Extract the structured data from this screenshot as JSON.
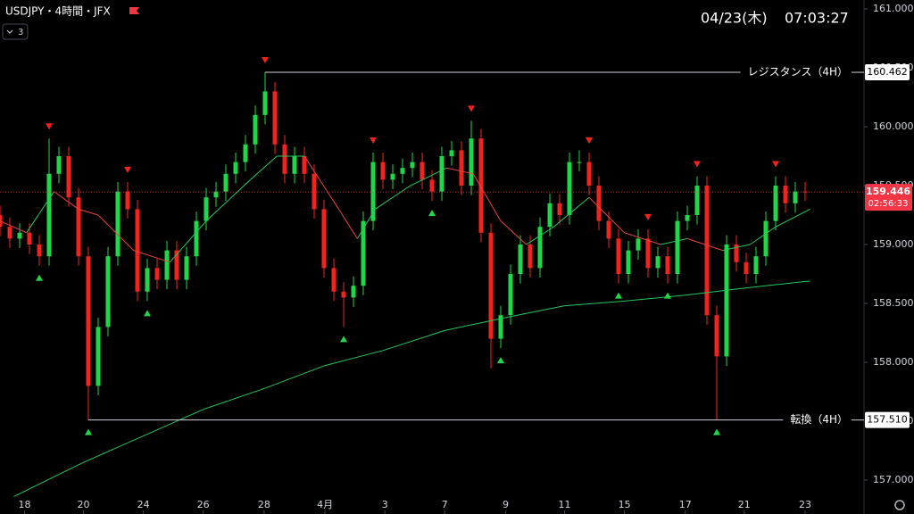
{
  "header": {
    "symbol": "USDJPY・4時間・JFX",
    "indicator_count": "3",
    "date": "04/23(木)",
    "time": "07:03:27"
  },
  "chart_data": {
    "type": "candlestick",
    "x": [
      0,
      1,
      2,
      3,
      4,
      5,
      6,
      7,
      8,
      9,
      10,
      11,
      12,
      13,
      14,
      15,
      16,
      17,
      18,
      19,
      20,
      21,
      22,
      23,
      24,
      25,
      26,
      27,
      28,
      29,
      30,
      31,
      32,
      33,
      34,
      35,
      36,
      37,
      38,
      39,
      40,
      41,
      42,
      43,
      44,
      45,
      46,
      47,
      48,
      49,
      50,
      51,
      52,
      53,
      54,
      55,
      56,
      57,
      58,
      59,
      60,
      61,
      62,
      63,
      64,
      65,
      66,
      67,
      68,
      69,
      70,
      71,
      72,
      73,
      74,
      75,
      76,
      77,
      78,
      79,
      80,
      81,
      82
    ],
    "open": [
      159.25,
      159.15,
      159.05,
      159.1,
      159.0,
      158.9,
      159.6,
      159.75,
      159.4,
      158.9,
      157.8,
      158.3,
      158.9,
      159.45,
      159.3,
      158.6,
      158.8,
      158.7,
      158.95,
      158.7,
      158.9,
      159.2,
      159.4,
      159.45,
      159.6,
      159.7,
      159.85,
      160.1,
      160.3,
      159.85,
      159.6,
      159.75,
      159.6,
      159.3,
      158.8,
      158.6,
      158.55,
      158.65,
      159.2,
      159.7,
      159.55,
      159.6,
      159.65,
      159.7,
      159.55,
      159.45,
      159.75,
      159.8,
      159.5,
      159.9,
      159.1,
      158.2,
      158.4,
      158.75,
      159.0,
      158.8,
      159.15,
      159.35,
      159.25,
      159.7,
      159.7,
      159.5,
      159.2,
      159.05,
      158.75,
      158.95,
      159.05,
      158.8,
      158.9,
      158.75,
      159.2,
      159.25,
      159.5,
      158.4,
      158.05,
      159.0,
      158.85,
      158.75,
      158.9,
      159.2,
      159.5,
      159.35,
      159.45
    ],
    "high": [
      159.33,
      159.23,
      159.18,
      159.18,
      159.08,
      159.9,
      159.83,
      159.83,
      159.48,
      158.98,
      158.38,
      158.98,
      159.53,
      159.53,
      159.38,
      158.88,
      158.88,
      159.03,
      159.03,
      158.98,
      159.28,
      159.48,
      159.53,
      159.68,
      159.78,
      159.93,
      160.18,
      160.462,
      160.38,
      159.93,
      159.83,
      159.83,
      159.68,
      159.38,
      158.88,
      158.68,
      158.73,
      159.28,
      159.78,
      159.78,
      159.68,
      159.73,
      159.78,
      159.78,
      159.63,
      159.83,
      159.88,
      159.88,
      160.05,
      159.98,
      159.18,
      158.48,
      158.83,
      159.08,
      159.08,
      159.23,
      159.43,
      159.43,
      159.78,
      159.8,
      159.78,
      159.58,
      159.28,
      159.13,
      159.03,
      159.13,
      159.13,
      158.98,
      158.98,
      159.28,
      159.33,
      159.58,
      159.58,
      158.48,
      159.08,
      159.08,
      158.93,
      158.98,
      159.28,
      159.58,
      159.58,
      159.53,
      159.53
    ],
    "low": [
      159.07,
      158.97,
      158.97,
      158.92,
      158.82,
      158.82,
      159.52,
      159.32,
      158.82,
      157.51,
      157.72,
      158.22,
      158.82,
      159.22,
      158.52,
      158.52,
      158.62,
      158.62,
      158.62,
      158.62,
      158.82,
      159.12,
      159.32,
      159.37,
      159.52,
      159.62,
      159.77,
      160.02,
      159.77,
      159.52,
      159.52,
      159.52,
      159.22,
      158.72,
      158.52,
      158.3,
      158.47,
      158.57,
      159.12,
      159.47,
      159.47,
      159.52,
      159.57,
      159.47,
      159.37,
      159.37,
      159.67,
      159.42,
      159.42,
      159.02,
      157.95,
      158.12,
      158.32,
      158.67,
      158.72,
      158.72,
      159.07,
      159.17,
      159.17,
      159.62,
      159.42,
      159.12,
      158.97,
      158.67,
      158.67,
      158.87,
      158.72,
      158.72,
      158.67,
      158.67,
      159.12,
      159.17,
      158.32,
      157.51,
      157.97,
      158.77,
      158.67,
      158.67,
      158.82,
      159.12,
      159.27,
      159.27,
      159.37
    ],
    "close": [
      159.15,
      159.05,
      159.1,
      159.0,
      158.9,
      159.6,
      159.75,
      159.4,
      158.9,
      157.8,
      158.3,
      158.9,
      159.45,
      159.3,
      158.6,
      158.8,
      158.7,
      158.95,
      158.7,
      158.9,
      159.2,
      159.4,
      159.45,
      159.6,
      159.7,
      159.85,
      160.1,
      160.3,
      159.85,
      159.6,
      159.75,
      159.6,
      159.3,
      158.8,
      158.6,
      158.55,
      158.65,
      159.2,
      159.7,
      159.55,
      159.6,
      159.65,
      159.7,
      159.55,
      159.45,
      159.75,
      159.8,
      159.5,
      159.9,
      159.1,
      158.2,
      158.4,
      158.75,
      159.0,
      158.8,
      159.15,
      159.35,
      159.25,
      159.7,
      159.7,
      159.5,
      159.2,
      159.05,
      158.75,
      158.95,
      159.05,
      158.8,
      158.9,
      158.75,
      159.2,
      159.25,
      159.5,
      158.4,
      158.05,
      159.0,
      158.85,
      158.75,
      158.9,
      159.2,
      159.5,
      159.35,
      159.45,
      159.446
    ],
    "up_color": "#1fd84a",
    "down_color": "#f2231f",
    "xlim": [
      0,
      88
    ],
    "xticks": [
      {
        "value": 2.5,
        "label": "18"
      },
      {
        "value": 8.5,
        "label": "20"
      },
      {
        "value": 14.6,
        "label": "24"
      },
      {
        "value": 20.7,
        "label": "26"
      },
      {
        "value": 26.9,
        "label": "28"
      },
      {
        "value": 33.1,
        "label": "4月"
      },
      {
        "value": 39.2,
        "label": "3"
      },
      {
        "value": 45.3,
        "label": "7"
      },
      {
        "value": 51.5,
        "label": "9"
      },
      {
        "value": 57.5,
        "label": "11"
      },
      {
        "value": 63.6,
        "label": "15"
      },
      {
        "value": 69.8,
        "label": "17"
      },
      {
        "value": 75.8,
        "label": "21"
      },
      {
        "value": 82,
        "label": "23"
      }
    ],
    "ylim": [
      156.712,
      161.076
    ],
    "yticks": [
      {
        "value": 157,
        "label": "157.000"
      },
      {
        "value": 157.5,
        "label": "157.500"
      },
      {
        "value": 158,
        "label": "158.000"
      },
      {
        "value": 158.5,
        "label": "158.500"
      },
      {
        "value": 159,
        "label": "159.000"
      },
      {
        "value": 159.5,
        "label": "159.500"
      },
      {
        "value": 160,
        "label": "160.000"
      },
      {
        "value": 160.5,
        "label": "160.500"
      },
      {
        "value": 161,
        "label": "161.000"
      }
    ],
    "last_price": 159.446,
    "countdown": "02:56:33",
    "moving_averages": [
      {
        "x": [
          1.4,
          8.5,
          20.7,
          27,
          33,
          39,
          45.3,
          51.5,
          57.5,
          63.6,
          69.8,
          75.8,
          82.5
        ],
        "values": [
          156.86,
          157.15,
          157.6,
          157.78,
          157.97,
          158.1,
          158.27,
          158.38,
          158.48,
          158.52,
          158.57,
          158.63,
          158.69
        ],
        "color": "#27c75a"
      },
      {
        "x": [
          0,
          2.7,
          5.5,
          8,
          10,
          13.6,
          17.3,
          21,
          25.5,
          28.2,
          31,
          34.5,
          36.4,
          38.2,
          41.8,
          45.5,
          48.2,
          51,
          53.6,
          56.4,
          60,
          63.6,
          67.3,
          70,
          73.6,
          76.4,
          79,
          82.5
        ],
        "values": [
          159.2,
          159.1,
          159.45,
          159.3,
          159.25,
          158.95,
          158.85,
          159.2,
          159.55,
          159.75,
          159.75,
          159.3,
          159.05,
          159.3,
          159.5,
          159.65,
          159.6,
          159.2,
          159.0,
          159.15,
          159.4,
          159.1,
          159.0,
          159.05,
          158.95,
          159.0,
          159.15,
          159.3
        ],
        "up_color": "#27c75a",
        "down_color": "#e8453c"
      }
    ],
    "levels": [
      {
        "name": "レジスタンス（4H）",
        "price": {
          "value": 160.462,
          "label": "160.462"
        }
      },
      {
        "name": "転換（4H）",
        "price": {
          "value": 157.51,
          "label": "157.510"
        }
      }
    ],
    "signals": {
      "up": [
        4,
        9,
        15,
        35,
        44,
        51,
        63,
        68,
        73
      ],
      "down": [
        5,
        13,
        27,
        38,
        48,
        60,
        66,
        71,
        79
      ]
    }
  }
}
